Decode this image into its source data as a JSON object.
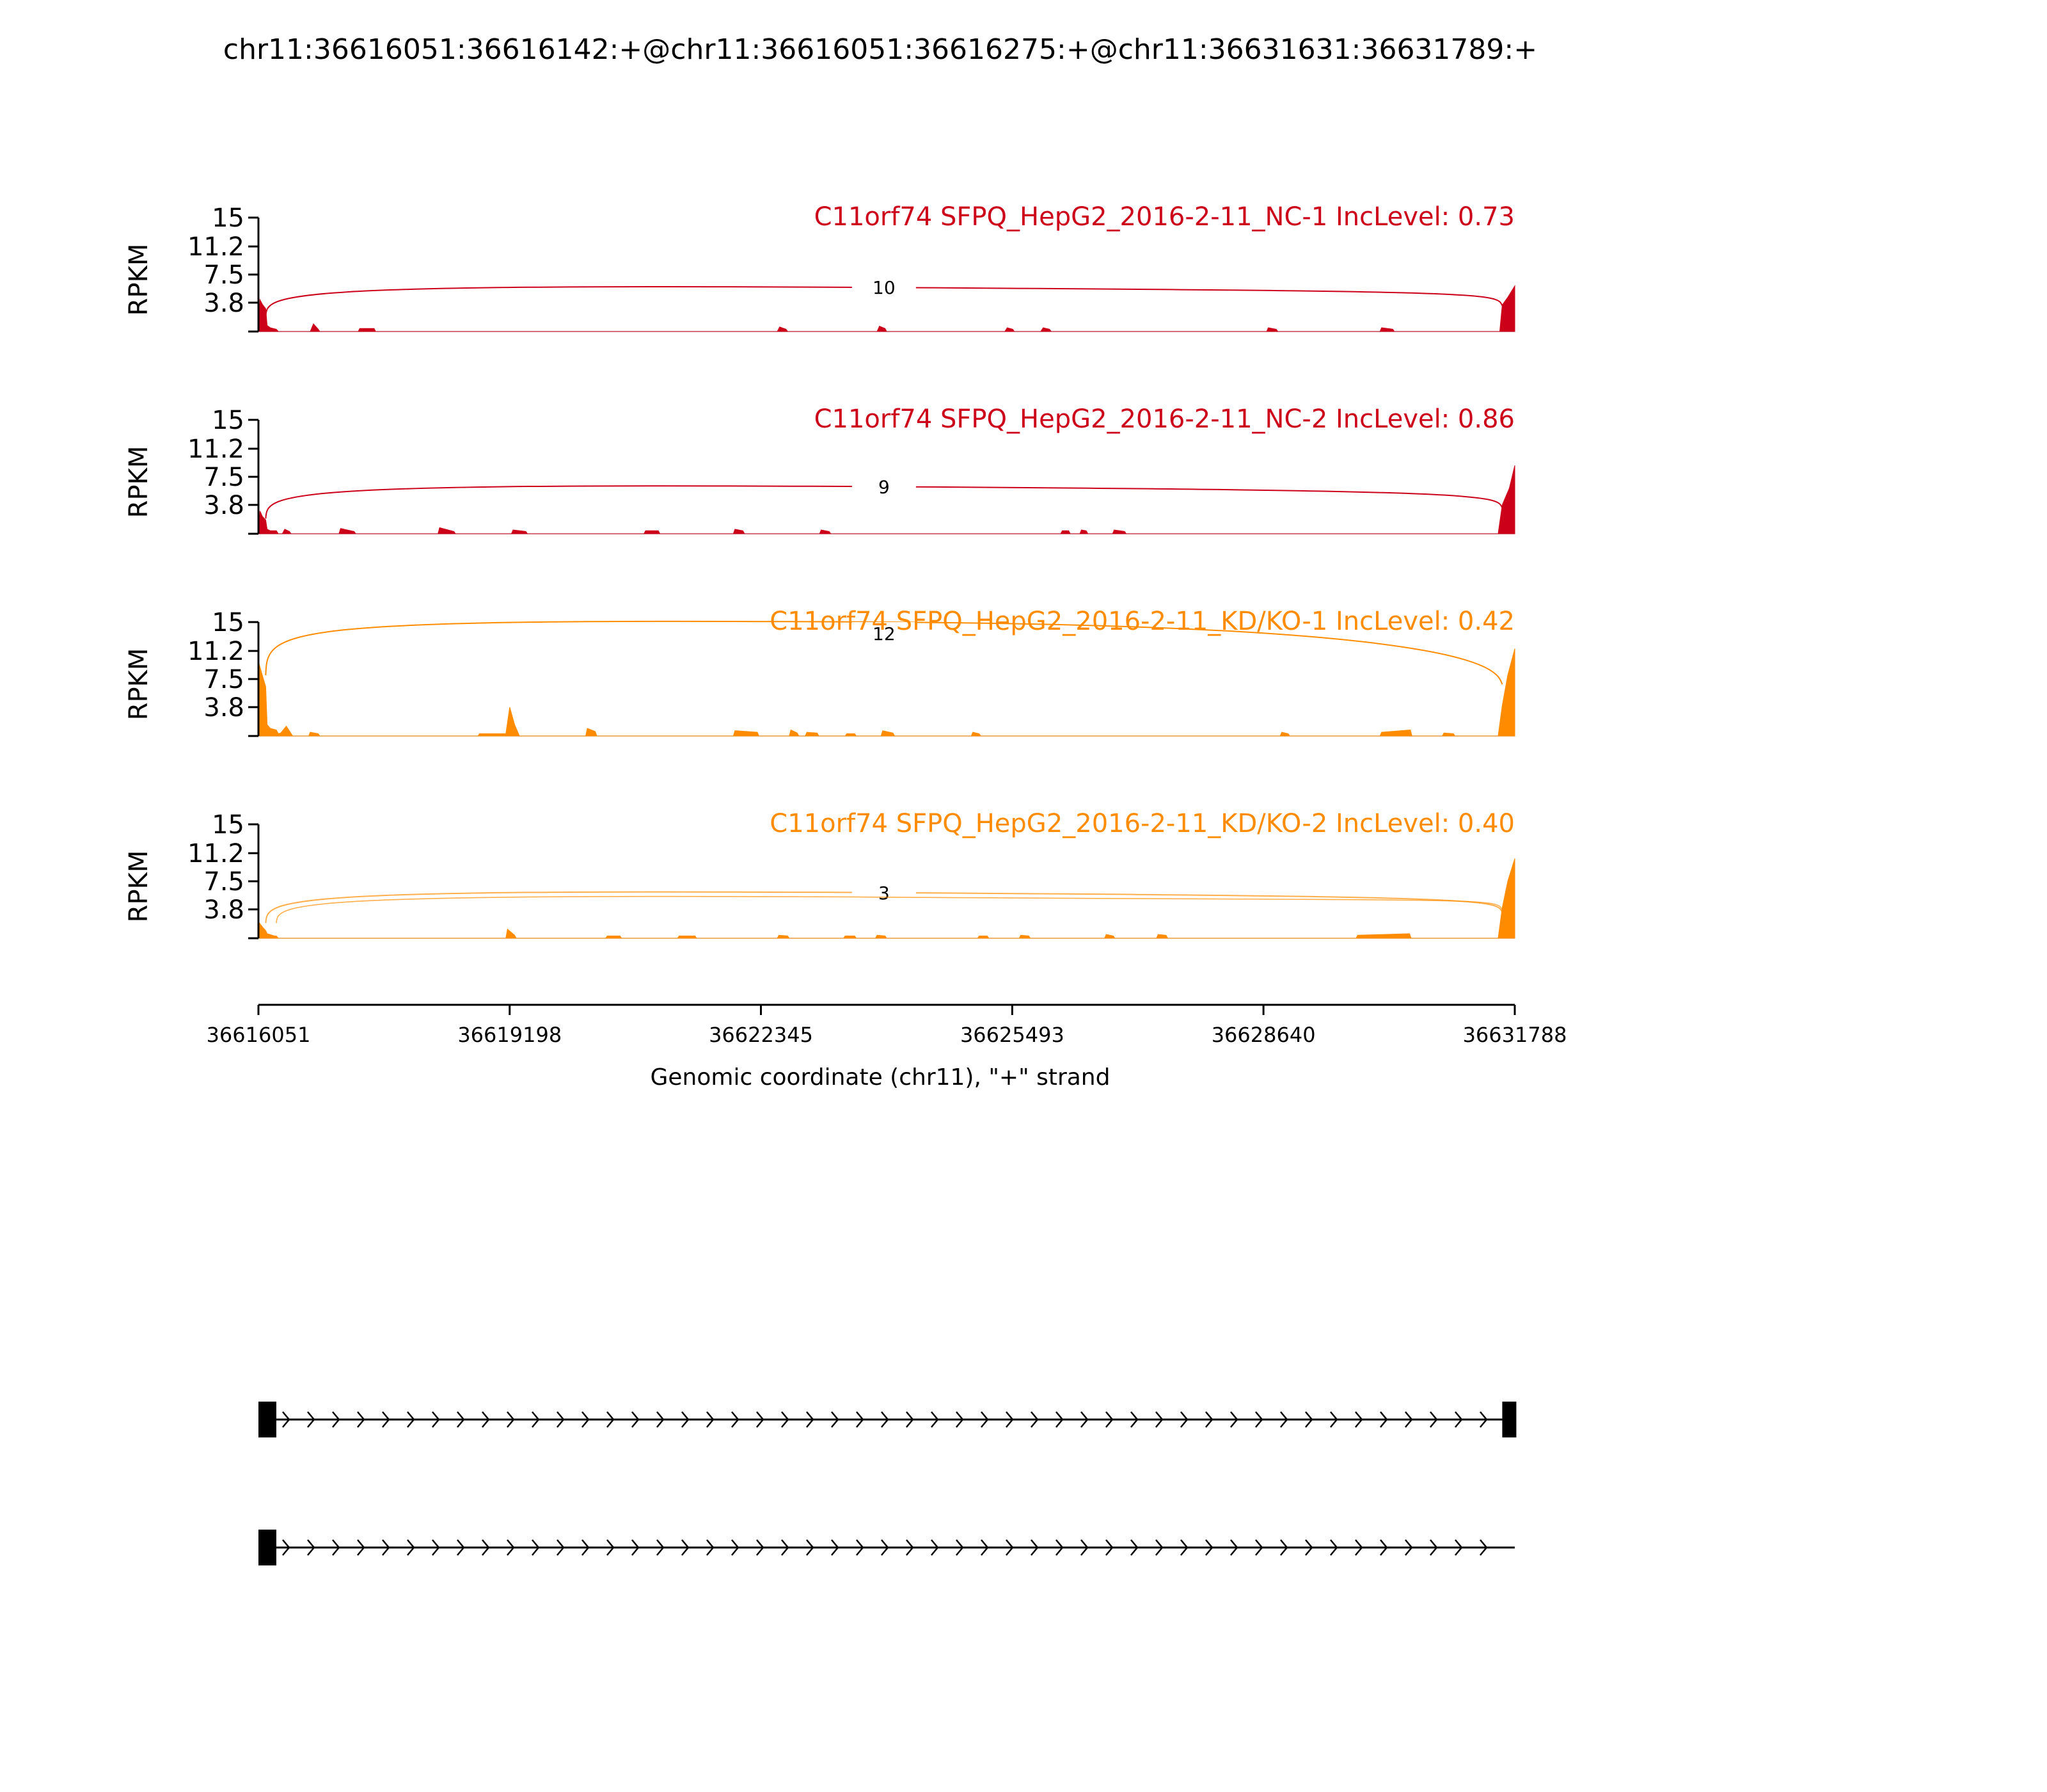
{
  "title": "chr11:36616051:36616142:+@chr11:36616051:36616275:+@chr11:36631631:36631789:+",
  "colors": {
    "nc": "#cc0018",
    "kd": "#ff8c00",
    "axis": "#000000"
  },
  "chart_data": {
    "type": "area",
    "title": "chr11:36616051:36616142:+@chr11:36616051:36616275:+@chr11:36631631:36631789:+",
    "ylabel": "RPKM",
    "xlabel": "Genomic coordinate (chr11), \"+\" strand",
    "xlim": [
      36616051,
      36631788
    ],
    "x_ticks": [
      "36616051",
      "36619198",
      "36622345",
      "36625493",
      "36628640",
      "36631788"
    ],
    "ylim": [
      0,
      15
    ],
    "y_ticks": [
      "15",
      "11.2",
      "7.5",
      "3.8"
    ],
    "y_tick_values": [
      15,
      11.2,
      7.5,
      3.8
    ],
    "tracks": [
      {
        "label": "C11orf74 SFPQ_HepG2_2016-2-11_NC-1 IncLevel: 0.73",
        "group": "nc",
        "junctions": [
          {
            "count": "10",
            "start": 36616142,
            "end": 36631631,
            "peak": 5.8
          }
        ],
        "coverage": [
          [
            36616051,
            0
          ],
          [
            36616070,
            4.2
          ],
          [
            36616100,
            3.6
          ],
          [
            36616142,
            3.0
          ],
          [
            36616160,
            0.8
          ],
          [
            36616200,
            0.5
          ],
          [
            36616275,
            0.3
          ],
          [
            36616300,
            0
          ],
          [
            36616700,
            0
          ],
          [
            36616740,
            1.0
          ],
          [
            36616800,
            0.3
          ],
          [
            36616820,
            0
          ],
          [
            36617300,
            0
          ],
          [
            36617320,
            0.4
          ],
          [
            36617500,
            0.4
          ],
          [
            36617520,
            0
          ],
          [
            36622550,
            0
          ],
          [
            36622580,
            0.6
          ],
          [
            36622660,
            0.3
          ],
          [
            36622680,
            0
          ],
          [
            36623800,
            0
          ],
          [
            36623830,
            0.7
          ],
          [
            36623900,
            0.4
          ],
          [
            36623920,
            0
          ],
          [
            36625400,
            0
          ],
          [
            36625430,
            0.5
          ],
          [
            36625500,
            0.3
          ],
          [
            36625520,
            0
          ],
          [
            36625850,
            0
          ],
          [
            36625880,
            0.5
          ],
          [
            36625960,
            0.3
          ],
          [
            36625980,
            0
          ],
          [
            36628680,
            0
          ],
          [
            36628700,
            0.5
          ],
          [
            36628800,
            0.3
          ],
          [
            36628820,
            0
          ],
          [
            36630100,
            0
          ],
          [
            36630120,
            0.5
          ],
          [
            36630260,
            0.3
          ],
          [
            36630280,
            0
          ],
          [
            36631600,
            0
          ],
          [
            36631631,
            3.5
          ],
          [
            36631700,
            4.5
          ],
          [
            36631788,
            6.0
          ]
        ]
      },
      {
        "label": "C11orf74 SFPQ_HepG2_2016-2-11_NC-2 IncLevel: 0.86",
        "group": "nc",
        "junctions": [
          {
            "count": "9",
            "start": 36616142,
            "end": 36631631,
            "peak": 6.2
          }
        ],
        "coverage": [
          [
            36616051,
            0
          ],
          [
            36616070,
            3.0
          ],
          [
            36616100,
            2.3
          ],
          [
            36616142,
            1.8
          ],
          [
            36616160,
            0.6
          ],
          [
            36616200,
            0.4
          ],
          [
            36616275,
            0.4
          ],
          [
            36616300,
            0
          ],
          [
            36616350,
            0
          ],
          [
            36616380,
            0.6
          ],
          [
            36616440,
            0.3
          ],
          [
            36616460,
            0
          ],
          [
            36617060,
            0
          ],
          [
            36617080,
            0.7
          ],
          [
            36617250,
            0.3
          ],
          [
            36617270,
            0
          ],
          [
            36618300,
            0
          ],
          [
            36618320,
            0.8
          ],
          [
            36618500,
            0.3
          ],
          [
            36618520,
            0
          ],
          [
            36619220,
            0
          ],
          [
            36619240,
            0.5
          ],
          [
            36619400,
            0.3
          ],
          [
            36619420,
            0
          ],
          [
            36620880,
            0
          ],
          [
            36620900,
            0.4
          ],
          [
            36621060,
            0.4
          ],
          [
            36621080,
            0
          ],
          [
            36622000,
            0
          ],
          [
            36622020,
            0.6
          ],
          [
            36622120,
            0.4
          ],
          [
            36622140,
            0
          ],
          [
            36623080,
            0
          ],
          [
            36623100,
            0.5
          ],
          [
            36623200,
            0.3
          ],
          [
            36623220,
            0
          ],
          [
            36626100,
            0
          ],
          [
            36626120,
            0.4
          ],
          [
            36626200,
            0.4
          ],
          [
            36626220,
            0
          ],
          [
            36626340,
            0
          ],
          [
            36626360,
            0.5
          ],
          [
            36626420,
            0.4
          ],
          [
            36626440,
            0
          ],
          [
            36626750,
            0
          ],
          [
            36626770,
            0.5
          ],
          [
            36626900,
            0.3
          ],
          [
            36626920,
            0
          ],
          [
            36631580,
            0
          ],
          [
            36631631,
            3.8
          ],
          [
            36631720,
            6.0
          ],
          [
            36631788,
            9.0
          ]
        ]
      },
      {
        "label": "C11orf74 SFPQ_HepG2_2016-2-11_KD/KO-1 IncLevel: 0.42",
        "group": "kd",
        "junctions": [
          {
            "count": "12",
            "start": 36616142,
            "end": 36631631,
            "peak": 15.0
          }
        ],
        "coverage": [
          [
            36616051,
            0
          ],
          [
            36616060,
            9.5
          ],
          [
            36616100,
            8.0
          ],
          [
            36616142,
            6.5
          ],
          [
            36616160,
            1.5
          ],
          [
            36616200,
            1.0
          ],
          [
            36616275,
            0.8
          ],
          [
            36616300,
            0.3
          ],
          [
            36616330,
            0.4
          ],
          [
            36616400,
            1.3
          ],
          [
            36616450,
            0.5
          ],
          [
            36616480,
            0
          ],
          [
            36616680,
            0
          ],
          [
            36616700,
            0.5
          ],
          [
            36616800,
            0.3
          ],
          [
            36616820,
            0
          ],
          [
            36618800,
            0
          ],
          [
            36618820,
            0.3
          ],
          [
            36619150,
            0.3
          ],
          [
            36619198,
            3.8
          ],
          [
            36619260,
            1.5
          ],
          [
            36619320,
            0
          ],
          [
            36620150,
            0
          ],
          [
            36620170,
            1.0
          ],
          [
            36620270,
            0.6
          ],
          [
            36620290,
            0
          ],
          [
            36622000,
            0
          ],
          [
            36622020,
            0.7
          ],
          [
            36622300,
            0.5
          ],
          [
            36622320,
            0
          ],
          [
            36622700,
            0
          ],
          [
            36622720,
            0.8
          ],
          [
            36622800,
            0.4
          ],
          [
            36622820,
            0
          ],
          [
            36622900,
            0
          ],
          [
            36622920,
            0.5
          ],
          [
            36623050,
            0.4
          ],
          [
            36623070,
            0
          ],
          [
            36623400,
            0
          ],
          [
            36623420,
            0.3
          ],
          [
            36623520,
            0.3
          ],
          [
            36623540,
            0
          ],
          [
            36623850,
            0
          ],
          [
            36623870,
            0.7
          ],
          [
            36624000,
            0.4
          ],
          [
            36624020,
            0
          ],
          [
            36624980,
            0
          ],
          [
            36625000,
            0.5
          ],
          [
            36625080,
            0.3
          ],
          [
            36625100,
            0
          ],
          [
            36628850,
            0
          ],
          [
            36628870,
            0.5
          ],
          [
            36628950,
            0.3
          ],
          [
            36628970,
            0
          ],
          [
            36630100,
            0
          ],
          [
            36630120,
            0.5
          ],
          [
            36630480,
            0.8
          ],
          [
            36630500,
            0
          ],
          [
            36630880,
            0
          ],
          [
            36630900,
            0.4
          ],
          [
            36631020,
            0.3
          ],
          [
            36631040,
            0
          ],
          [
            36631580,
            0
          ],
          [
            36631631,
            4.0
          ],
          [
            36631700,
            8.0
          ],
          [
            36631788,
            11.5
          ]
        ]
      },
      {
        "label": "C11orf74 SFPQ_HepG2_2016-2-11_KD/KO-2 IncLevel: 0.40",
        "group": "kd",
        "junctions": [
          {
            "count": "3",
            "start": 36616142,
            "end": 36631631,
            "peak": 6.0
          },
          {
            "count": "",
            "start": 36616275,
            "end": 36631631,
            "peak": 5.4
          }
        ],
        "coverage": [
          [
            36616051,
            0
          ],
          [
            36616065,
            2.0
          ],
          [
            36616100,
            1.5
          ],
          [
            36616142,
            1.0
          ],
          [
            36616160,
            0.6
          ],
          [
            36616250,
            0.3
          ],
          [
            36616275,
            0.3
          ],
          [
            36616300,
            0
          ],
          [
            36619150,
            0
          ],
          [
            36619170,
            1.2
          ],
          [
            36619260,
            0.4
          ],
          [
            36619280,
            0
          ],
          [
            36620400,
            0
          ],
          [
            36620420,
            0.3
          ],
          [
            36620580,
            0.3
          ],
          [
            36620600,
            0
          ],
          [
            36621300,
            0
          ],
          [
            36621320,
            0.3
          ],
          [
            36621520,
            0.3
          ],
          [
            36621540,
            0
          ],
          [
            36622550,
            0
          ],
          [
            36622570,
            0.4
          ],
          [
            36622680,
            0.3
          ],
          [
            36622700,
            0
          ],
          [
            36623380,
            0
          ],
          [
            36623400,
            0.3
          ],
          [
            36623520,
            0.3
          ],
          [
            36623540,
            0
          ],
          [
            36623780,
            0
          ],
          [
            36623800,
            0.4
          ],
          [
            36623900,
            0.3
          ],
          [
            36623920,
            0
          ],
          [
            36625060,
            0
          ],
          [
            36625080,
            0.3
          ],
          [
            36625180,
            0.3
          ],
          [
            36625200,
            0
          ],
          [
            36625580,
            0
          ],
          [
            36625600,
            0.4
          ],
          [
            36625700,
            0.3
          ],
          [
            36625720,
            0
          ],
          [
            36626650,
            0
          ],
          [
            36626670,
            0.5
          ],
          [
            36626760,
            0.3
          ],
          [
            36626780,
            0
          ],
          [
            36627300,
            0
          ],
          [
            36627320,
            0.5
          ],
          [
            36627420,
            0.4
          ],
          [
            36627440,
            0
          ],
          [
            36629800,
            0
          ],
          [
            36629820,
            0.4
          ],
          [
            36630470,
            0.6
          ],
          [
            36630490,
            0
          ],
          [
            36631580,
            0
          ],
          [
            36631631,
            4.0
          ],
          [
            36631700,
            7.5
          ],
          [
            36631788,
            10.5
          ]
        ]
      }
    ],
    "isoforms": [
      {
        "exons": [
          [
            36616051,
            36616275
          ],
          [
            36631631,
            36631788
          ]
        ],
        "intron_end": 36631631
      },
      {
        "exons": [
          [
            36616051,
            36616275
          ]
        ],
        "intron_end": 36631788
      }
    ]
  }
}
